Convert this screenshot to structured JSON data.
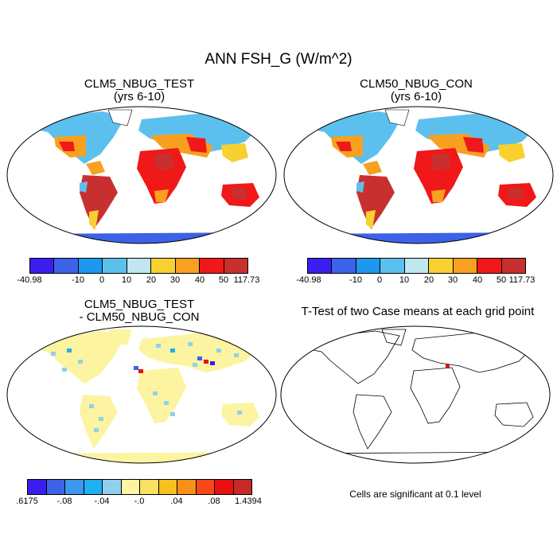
{
  "title": "ANN FSH_G (W/m^2)",
  "panels": [
    {
      "line1": "CLM5_NBUG_TEST",
      "line2": "(yrs 6-10)"
    },
    {
      "line1": "CLM50_NBUG_CON",
      "line2": "(yrs 6-10)"
    },
    {
      "line1": "CLM5_NBUG_TEST",
      "line2": "- CLM50_NBUG_CON"
    },
    {
      "line1": "T-Test of two Case means at each grid point",
      "line2": ""
    }
  ],
  "colorbar_abs": {
    "colors": [
      "#3a1ef0",
      "#3c62e8",
      "#1e98ee",
      "#5cc0ee",
      "#c0e6f0",
      "#f8d030",
      "#f8a020",
      "#f01818",
      "#c83030"
    ],
    "labels": [
      "-40.98",
      "-10",
      "0",
      "10",
      "20",
      "30",
      "40",
      "50",
      "117.73"
    ]
  },
  "colorbar_diff": {
    "colors": [
      "#3a1ef0",
      "#3c62e8",
      "#3c98ee",
      "#1eb0f0",
      "#90d0ee",
      "#fcf4a0",
      "#fce060",
      "#f8c020",
      "#f89018",
      "#f84818",
      "#e81010",
      "#c82828"
    ],
    "labels": [
      ".6175",
      "-.08",
      "-.04",
      "-.0",
      ".04",
      ".08",
      "1.4394"
    ]
  },
  "ttest_note": "Cells are significant at 0.1 level"
}
